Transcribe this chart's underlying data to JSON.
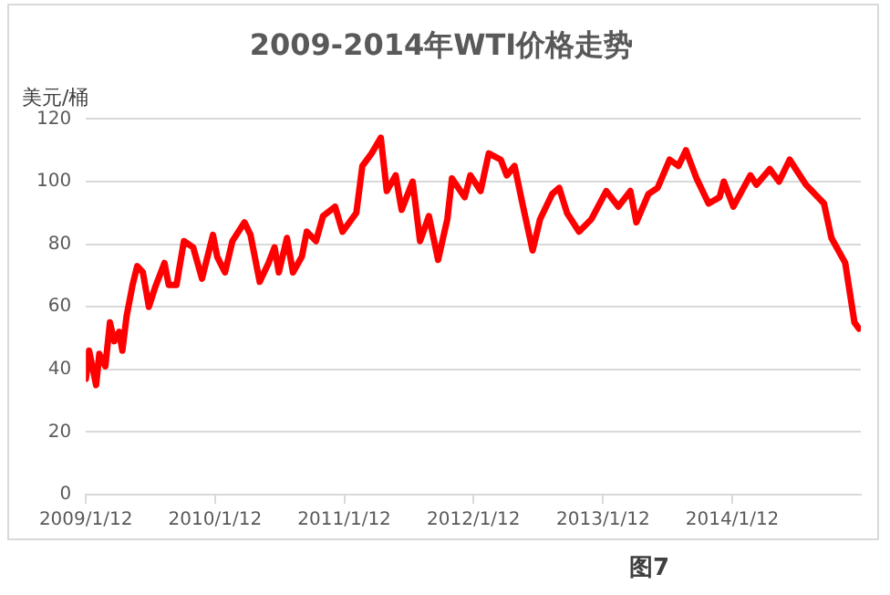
{
  "chart_data": {
    "type": "line",
    "title": "2009-2014年WTI价格走势",
    "ylabel": "美元/桶",
    "annotations": [
      "图7"
    ],
    "x": [
      "2009-01-12",
      "2009-01-21",
      "2009-02-10",
      "2009-02-19",
      "2009-03-08",
      "2009-03-21",
      "2009-04-02",
      "2009-04-16",
      "2009-04-25",
      "2009-05-07",
      "2009-05-24",
      "2009-06-06",
      "2009-06-22",
      "2009-07-09",
      "2009-07-26",
      "2009-08-22",
      "2009-09-03",
      "2009-09-25",
      "2009-10-16",
      "2009-11-11",
      "2009-12-06",
      "2010-01-06",
      "2010-01-18",
      "2010-02-09",
      "2010-03-02",
      "2010-04-05",
      "2010-04-22",
      "2010-05-18",
      "2010-06-12",
      "2010-06-29",
      "2010-07-11",
      "2010-08-03",
      "2010-08-20",
      "2010-09-14",
      "2010-09-28",
      "2010-10-24",
      "2010-11-13",
      "2010-12-17",
      "2011-01-07",
      "2011-02-15",
      "2011-03-04",
      "2011-03-30",
      "2011-04-25",
      "2011-05-12",
      "2011-06-06",
      "2011-06-23",
      "2011-07-24",
      "2011-08-14",
      "2011-09-08",
      "2011-10-04",
      "2011-10-30",
      "2011-11-12",
      "2011-12-18",
      "2012-01-03",
      "2012-02-01",
      "2012-02-24",
      "2012-03-29",
      "2012-04-15",
      "2012-05-07",
      "2012-05-31",
      "2012-06-27",
      "2012-07-18",
      "2012-08-21",
      "2012-09-10",
      "2012-10-02",
      "2012-11-05",
      "2012-12-10",
      "2013-01-21",
      "2013-02-24",
      "2013-03-30",
      "2013-04-16",
      "2013-05-20",
      "2013-06-15",
      "2013-07-19",
      "2013-08-13",
      "2013-09-03",
      "2013-10-03",
      "2013-11-06",
      "2013-12-07",
      "2013-12-19",
      "2014-01-15",
      "2014-03-04",
      "2014-03-21",
      "2014-04-28",
      "2014-05-24",
      "2014-06-23",
      "2014-08-08",
      "2014-09-28",
      "2014-10-19",
      "2014-11-27",
      "2014-12-23",
      "2015-01-05"
    ],
    "series": [
      {
        "color": "#ff0000",
        "values": [
          37,
          46,
          35,
          45,
          41,
          55,
          49,
          52,
          46,
          57,
          67,
          73,
          71,
          60,
          66,
          74,
          67,
          67,
          81,
          79,
          69,
          83,
          76,
          71,
          81,
          87,
          83,
          68,
          74,
          79,
          71,
          82,
          71,
          76,
          84,
          81,
          89,
          92,
          84,
          90,
          105,
          109,
          114,
          97,
          102,
          91,
          100,
          81,
          89,
          75,
          88,
          101,
          95,
          102,
          97,
          109,
          107,
          102,
          105,
          92,
          78,
          88,
          96,
          98,
          90,
          84,
          88,
          97,
          92,
          97,
          87,
          96,
          98,
          107,
          105,
          110,
          101,
          93,
          95,
          100,
          92,
          102,
          99,
          104,
          100,
          107,
          99,
          93,
          82,
          74,
          55,
          53
        ]
      }
    ],
    "xlim": [
      "2009-01-12",
      "2015-01-10"
    ],
    "xticks": [
      {
        "value": "2009-01-12",
        "label": "2009/1/12"
      },
      {
        "value": "2010-01-12",
        "label": "2010/1/12"
      },
      {
        "value": "2011-01-12",
        "label": "2011/1/12"
      },
      {
        "value": "2012-01-12",
        "label": "2012/1/12"
      },
      {
        "value": "2013-01-12",
        "label": "2013/1/12"
      },
      {
        "value": "2014-01-12",
        "label": "2014/1/12"
      }
    ],
    "ylim": [
      0,
      120
    ],
    "yticks": [
      0,
      20,
      40,
      60,
      80,
      100,
      120
    ],
    "grid": "y",
    "legend": false,
    "marker": "none",
    "line_style": "solid"
  }
}
